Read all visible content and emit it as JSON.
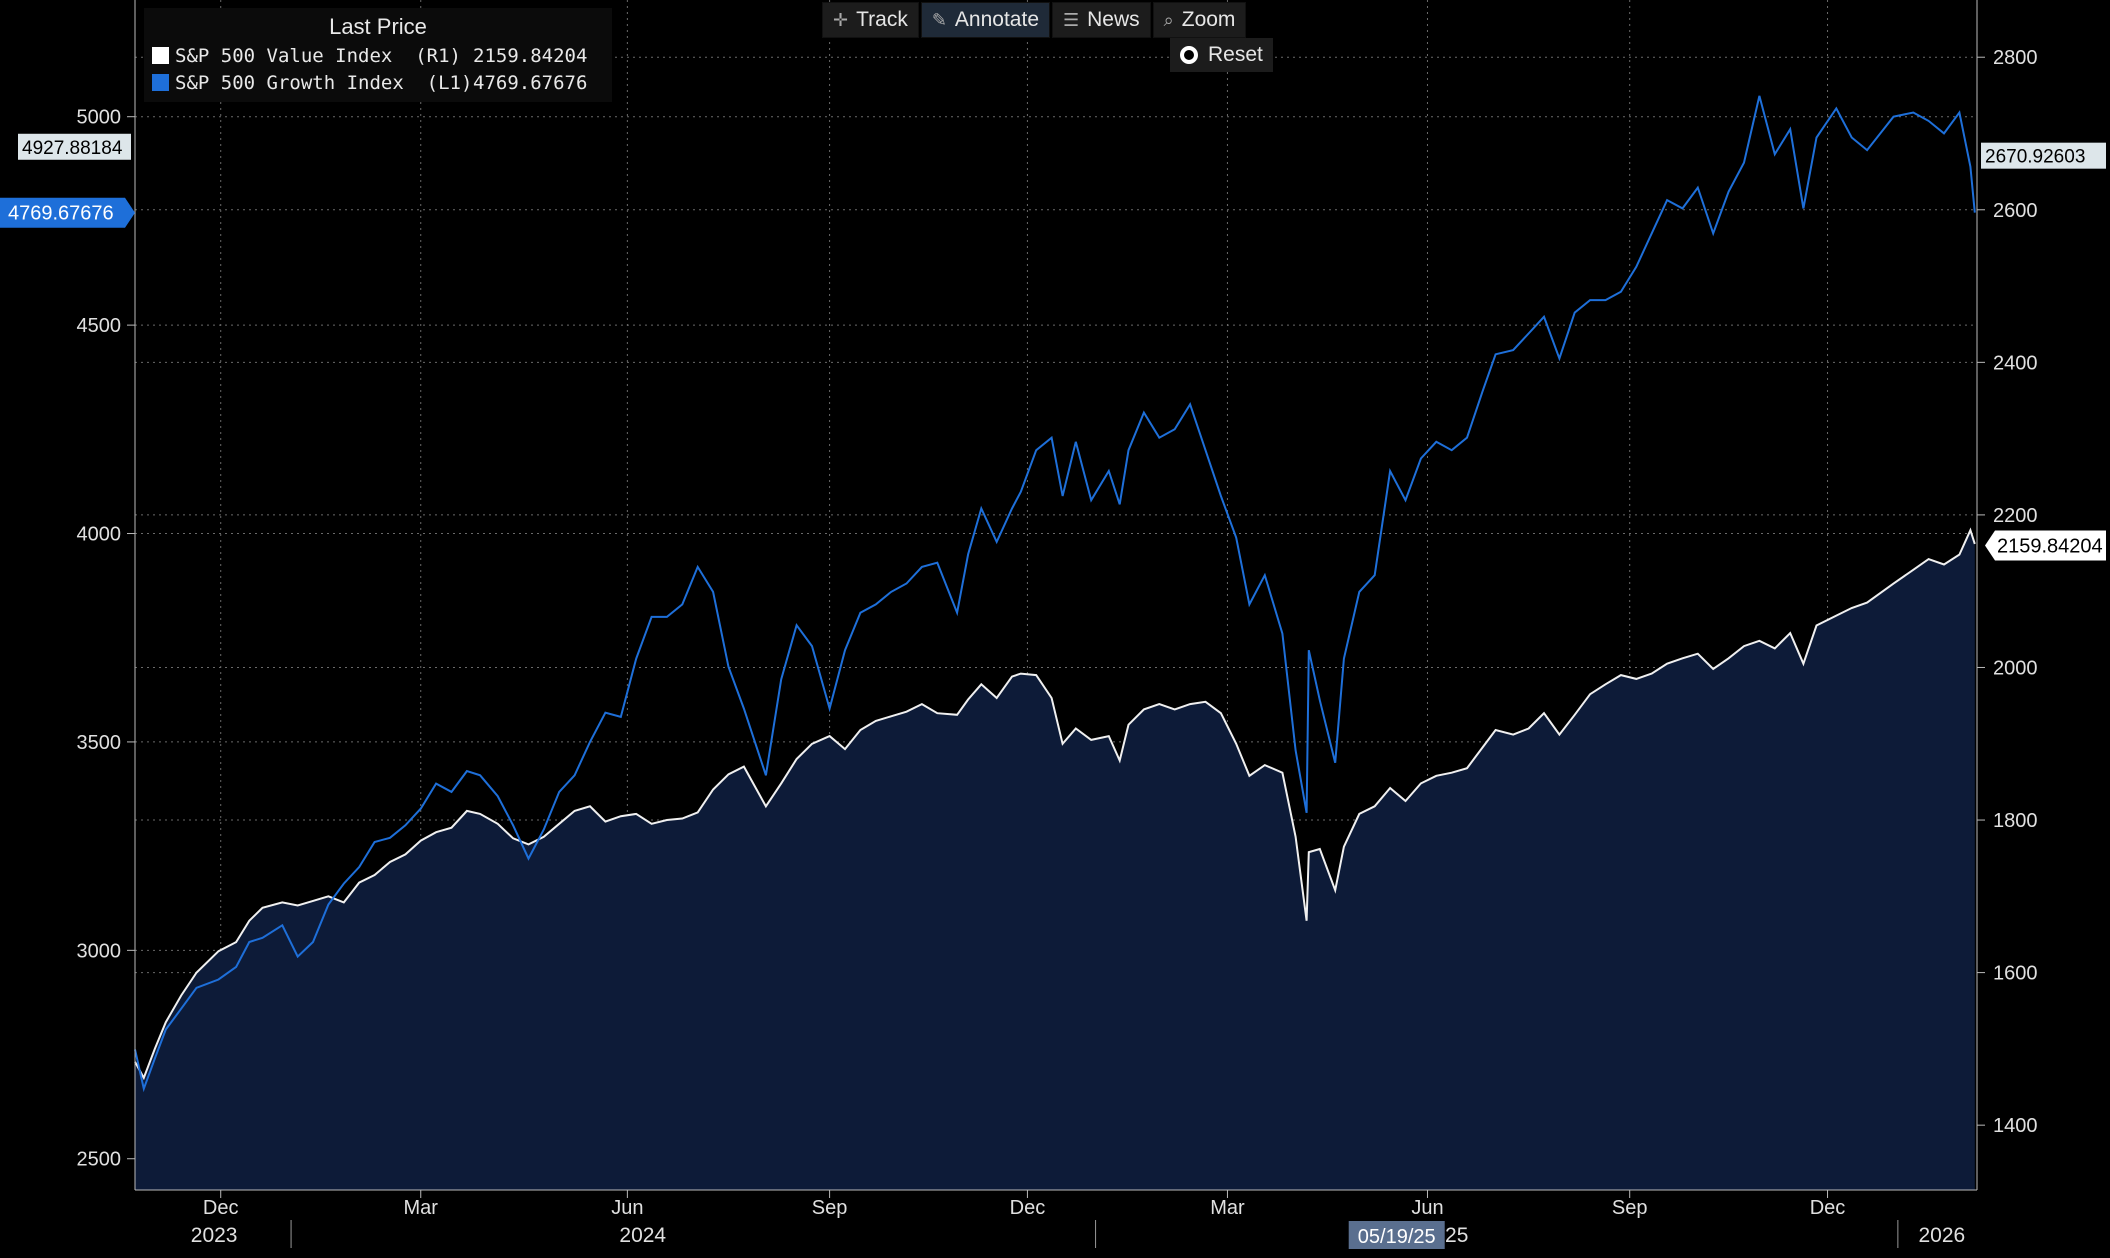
{
  "toolbar": {
    "track_label": "Track",
    "annotate_label": "Annotate",
    "news_label": "News",
    "zoom_label": "Zoom",
    "reset_label": "Reset"
  },
  "legend": {
    "title": "Last Price",
    "items": [
      {
        "name": "S&P 500 Value Index  (R1)",
        "value": "2159.84204",
        "color": "#ffffff"
      },
      {
        "name": "S&P 500 Growth Index  (L1)",
        "value": "4769.67676",
        "color": "#1e6fd9"
      }
    ]
  },
  "colors": {
    "background": "#000000",
    "value_line": "#f0f0f0",
    "value_fill": "#0d1b38",
    "growth_line": "#1e6fd9",
    "grid": "#6a6a6a"
  },
  "chart_data": {
    "type": "line",
    "title": "",
    "x_range": [
      "2023-10-23",
      "2026-02-07"
    ],
    "left_axis": {
      "ticks": [
        2500,
        3000,
        3500,
        4000,
        4500,
        5000
      ],
      "ylim": [
        2425,
        5280
      ]
    },
    "right_axis": {
      "ticks": [
        1400,
        1600,
        1800,
        2000,
        2200,
        2400,
        2600,
        2800
      ],
      "ylim": [
        1315,
        2875
      ]
    },
    "x_month_ticks": [
      {
        "label": "Dec",
        "date": "2023-12-01"
      },
      {
        "label": "Mar",
        "date": "2024-03-01"
      },
      {
        "label": "Jun",
        "date": "2024-06-03"
      },
      {
        "label": "Sep",
        "date": "2024-09-03"
      },
      {
        "label": "Dec",
        "date": "2024-12-02"
      },
      {
        "label": "Mar",
        "date": "2025-03-03"
      },
      {
        "label": "Jun",
        "date": "2025-06-02"
      },
      {
        "label": "Sep",
        "date": "2025-09-02"
      },
      {
        "label": "Dec",
        "date": "2025-12-01"
      }
    ],
    "x_year_labels": [
      {
        "label": "2023",
        "date": "2023-11-28"
      },
      {
        "label": "2024",
        "date": "2024-06-10"
      },
      {
        "label": "2025",
        "date": "2025-06-10"
      },
      {
        "label": "2026",
        "date": "2026-01-22"
      }
    ],
    "x_year_boundaries": [
      "2024-01-02",
      "2025-01-02",
      "2026-01-02"
    ],
    "cursor_date_label": "05/19/25",
    "cursor_date": "2025-05-19",
    "left_markers": [
      {
        "value": 4927.88184,
        "label": "4927.88184",
        "style": "box-light"
      },
      {
        "value": 4769.67676,
        "label": "4769.67676",
        "style": "box-blue"
      }
    ],
    "right_markers": [
      {
        "value": 2670.92603,
        "label": "2670.92603",
        "style": "box-light"
      },
      {
        "value": 2159.84204,
        "label": "2159.84204",
        "style": "box-white"
      }
    ],
    "series": [
      {
        "name": "S&P 500 Value Index",
        "axis": "right",
        "style": "area",
        "points": [
          [
            "2023-10-23",
            1483
          ],
          [
            "2023-10-27",
            1462
          ],
          [
            "2023-11-01",
            1500
          ],
          [
            "2023-11-06",
            1535
          ],
          [
            "2023-11-13",
            1570
          ],
          [
            "2023-11-20",
            1600
          ],
          [
            "2023-11-30",
            1628
          ],
          [
            "2023-12-08",
            1640
          ],
          [
            "2023-12-14",
            1668
          ],
          [
            "2023-12-20",
            1685
          ],
          [
            "2023-12-29",
            1692
          ],
          [
            "2024-01-05",
            1688
          ],
          [
            "2024-01-12",
            1694
          ],
          [
            "2024-01-19",
            1700
          ],
          [
            "2024-01-26",
            1692
          ],
          [
            "2024-02-02",
            1718
          ],
          [
            "2024-02-09",
            1728
          ],
          [
            "2024-02-16",
            1745
          ],
          [
            "2024-02-23",
            1755
          ],
          [
            "2024-03-01",
            1773
          ],
          [
            "2024-03-08",
            1784
          ],
          [
            "2024-03-15",
            1790
          ],
          [
            "2024-03-22",
            1812
          ],
          [
            "2024-03-28",
            1808
          ],
          [
            "2024-04-05",
            1795
          ],
          [
            "2024-04-12",
            1776
          ],
          [
            "2024-04-19",
            1768
          ],
          [
            "2024-04-26",
            1778
          ],
          [
            "2024-05-03",
            1795
          ],
          [
            "2024-05-10",
            1812
          ],
          [
            "2024-05-17",
            1818
          ],
          [
            "2024-05-24",
            1798
          ],
          [
            "2024-05-31",
            1805
          ],
          [
            "2024-06-07",
            1808
          ],
          [
            "2024-06-14",
            1795
          ],
          [
            "2024-06-21",
            1800
          ],
          [
            "2024-06-28",
            1802
          ],
          [
            "2024-07-05",
            1810
          ],
          [
            "2024-07-12",
            1840
          ],
          [
            "2024-07-19",
            1860
          ],
          [
            "2024-07-26",
            1870
          ],
          [
            "2024-08-05",
            1818
          ],
          [
            "2024-08-12",
            1848
          ],
          [
            "2024-08-19",
            1880
          ],
          [
            "2024-08-26",
            1900
          ],
          [
            "2024-09-03",
            1910
          ],
          [
            "2024-09-10",
            1893
          ],
          [
            "2024-09-17",
            1918
          ],
          [
            "2024-09-24",
            1930
          ],
          [
            "2024-10-01",
            1936
          ],
          [
            "2024-10-08",
            1942
          ],
          [
            "2024-10-15",
            1952
          ],
          [
            "2024-10-22",
            1940
          ],
          [
            "2024-10-31",
            1938
          ],
          [
            "2024-11-05",
            1958
          ],
          [
            "2024-11-11",
            1978
          ],
          [
            "2024-11-18",
            1960
          ],
          [
            "2024-11-25",
            1988
          ],
          [
            "2024-11-29",
            1992
          ],
          [
            "2024-12-06",
            1990
          ],
          [
            "2024-12-13",
            1960
          ],
          [
            "2024-12-18",
            1900
          ],
          [
            "2024-12-24",
            1920
          ],
          [
            "2024-12-31",
            1905
          ],
          [
            "2025-01-08",
            1910
          ],
          [
            "2025-01-13",
            1878
          ],
          [
            "2025-01-17",
            1925
          ],
          [
            "2025-01-24",
            1945
          ],
          [
            "2025-01-31",
            1952
          ],
          [
            "2025-02-07",
            1945
          ],
          [
            "2025-02-14",
            1952
          ],
          [
            "2025-02-21",
            1955
          ],
          [
            "2025-02-28",
            1940
          ],
          [
            "2025-03-07",
            1900
          ],
          [
            "2025-03-13",
            1858
          ],
          [
            "2025-03-20",
            1872
          ],
          [
            "2025-03-28",
            1862
          ],
          [
            "2025-04-03",
            1778
          ],
          [
            "2025-04-08",
            1668
          ],
          [
            "2025-04-09",
            1758
          ],
          [
            "2025-04-14",
            1762
          ],
          [
            "2025-04-21",
            1708
          ],
          [
            "2025-04-25",
            1765
          ],
          [
            "2025-05-02",
            1808
          ],
          [
            "2025-05-09",
            1818
          ],
          [
            "2025-05-16",
            1842
          ],
          [
            "2025-05-23",
            1825
          ],
          [
            "2025-05-30",
            1848
          ],
          [
            "2025-06-06",
            1858
          ],
          [
            "2025-06-13",
            1862
          ],
          [
            "2025-06-20",
            1868
          ],
          [
            "2025-06-27",
            1895
          ],
          [
            "2025-07-03",
            1918
          ],
          [
            "2025-07-11",
            1912
          ],
          [
            "2025-07-18",
            1920
          ],
          [
            "2025-07-25",
            1940
          ],
          [
            "2025-08-01",
            1912
          ],
          [
            "2025-08-08",
            1938
          ],
          [
            "2025-08-15",
            1965
          ],
          [
            "2025-08-22",
            1978
          ],
          [
            "2025-08-29",
            1990
          ],
          [
            "2025-09-05",
            1985
          ],
          [
            "2025-09-12",
            1992
          ],
          [
            "2025-09-19",
            2005
          ],
          [
            "2025-09-26",
            2012
          ],
          [
            "2025-10-03",
            2018
          ],
          [
            "2025-10-10",
            1998
          ],
          [
            "2025-10-17",
            2012
          ],
          [
            "2025-10-24",
            2028
          ],
          [
            "2025-10-31",
            2035
          ],
          [
            "2025-11-07",
            2025
          ],
          [
            "2025-11-14",
            2045
          ],
          [
            "2025-11-20",
            2005
          ],
          [
            "2025-11-26",
            2055
          ],
          [
            "2025-12-05",
            2068
          ],
          [
            "2025-12-12",
            2078
          ],
          [
            "2025-12-19",
            2085
          ],
          [
            "2025-12-31",
            2110
          ],
          [
            "2026-01-09",
            2128
          ],
          [
            "2026-01-16",
            2142
          ],
          [
            "2026-01-23",
            2135
          ],
          [
            "2026-01-30",
            2148
          ],
          [
            "2026-02-04",
            2180
          ],
          [
            "2026-02-06",
            2162
          ]
        ]
      },
      {
        "name": "S&P 500 Growth Index",
        "axis": "left",
        "style": "line",
        "points": [
          [
            "2023-10-23",
            2762
          ],
          [
            "2023-10-27",
            2668
          ],
          [
            "2023-11-01",
            2740
          ],
          [
            "2023-11-06",
            2810
          ],
          [
            "2023-11-13",
            2860
          ],
          [
            "2023-11-20",
            2910
          ],
          [
            "2023-11-30",
            2930
          ],
          [
            "2023-12-08",
            2960
          ],
          [
            "2023-12-14",
            3020
          ],
          [
            "2023-12-20",
            3030
          ],
          [
            "2023-12-29",
            3060
          ],
          [
            "2024-01-05",
            2985
          ],
          [
            "2024-01-12",
            3020
          ],
          [
            "2024-01-19",
            3110
          ],
          [
            "2024-01-26",
            3160
          ],
          [
            "2024-02-02",
            3200
          ],
          [
            "2024-02-09",
            3260
          ],
          [
            "2024-02-16",
            3270
          ],
          [
            "2024-02-23",
            3300
          ],
          [
            "2024-03-01",
            3340
          ],
          [
            "2024-03-08",
            3400
          ],
          [
            "2024-03-15",
            3380
          ],
          [
            "2024-03-22",
            3430
          ],
          [
            "2024-03-28",
            3420
          ],
          [
            "2024-04-05",
            3370
          ],
          [
            "2024-04-12",
            3300
          ],
          [
            "2024-04-19",
            3220
          ],
          [
            "2024-04-26",
            3290
          ],
          [
            "2024-05-03",
            3380
          ],
          [
            "2024-05-10",
            3420
          ],
          [
            "2024-05-17",
            3500
          ],
          [
            "2024-05-24",
            3570
          ],
          [
            "2024-05-31",
            3560
          ],
          [
            "2024-06-07",
            3700
          ],
          [
            "2024-06-14",
            3800
          ],
          [
            "2024-06-21",
            3800
          ],
          [
            "2024-06-28",
            3830
          ],
          [
            "2024-07-05",
            3920
          ],
          [
            "2024-07-12",
            3860
          ],
          [
            "2024-07-19",
            3680
          ],
          [
            "2024-07-26",
            3580
          ],
          [
            "2024-08-05",
            3420
          ],
          [
            "2024-08-12",
            3650
          ],
          [
            "2024-08-19",
            3780
          ],
          [
            "2024-08-26",
            3730
          ],
          [
            "2024-09-03",
            3580
          ],
          [
            "2024-09-10",
            3720
          ],
          [
            "2024-09-17",
            3810
          ],
          [
            "2024-09-24",
            3830
          ],
          [
            "2024-10-01",
            3860
          ],
          [
            "2024-10-08",
            3880
          ],
          [
            "2024-10-15",
            3920
          ],
          [
            "2024-10-22",
            3930
          ],
          [
            "2024-10-31",
            3810
          ],
          [
            "2024-11-05",
            3950
          ],
          [
            "2024-11-11",
            4060
          ],
          [
            "2024-11-18",
            3980
          ],
          [
            "2024-11-25",
            4060
          ],
          [
            "2024-11-29",
            4100
          ],
          [
            "2024-12-06",
            4200
          ],
          [
            "2024-12-13",
            4230
          ],
          [
            "2024-12-18",
            4090
          ],
          [
            "2024-12-24",
            4220
          ],
          [
            "2024-12-31",
            4080
          ],
          [
            "2025-01-08",
            4150
          ],
          [
            "2025-01-13",
            4070
          ],
          [
            "2025-01-17",
            4200
          ],
          [
            "2025-01-24",
            4290
          ],
          [
            "2025-01-31",
            4230
          ],
          [
            "2025-02-07",
            4250
          ],
          [
            "2025-02-14",
            4310
          ],
          [
            "2025-02-21",
            4200
          ],
          [
            "2025-02-28",
            4090
          ],
          [
            "2025-03-07",
            3990
          ],
          [
            "2025-03-13",
            3830
          ],
          [
            "2025-03-20",
            3900
          ],
          [
            "2025-03-28",
            3760
          ],
          [
            "2025-04-03",
            3480
          ],
          [
            "2025-04-08",
            3330
          ],
          [
            "2025-04-09",
            3720
          ],
          [
            "2025-04-14",
            3600
          ],
          [
            "2025-04-21",
            3450
          ],
          [
            "2025-04-25",
            3700
          ],
          [
            "2025-05-02",
            3860
          ],
          [
            "2025-05-09",
            3900
          ],
          [
            "2025-05-16",
            4150
          ],
          [
            "2025-05-23",
            4080
          ],
          [
            "2025-05-30",
            4180
          ],
          [
            "2025-06-06",
            4220
          ],
          [
            "2025-06-13",
            4200
          ],
          [
            "2025-06-20",
            4230
          ],
          [
            "2025-06-27",
            4340
          ],
          [
            "2025-07-03",
            4430
          ],
          [
            "2025-07-11",
            4440
          ],
          [
            "2025-07-18",
            4480
          ],
          [
            "2025-07-25",
            4520
          ],
          [
            "2025-08-01",
            4420
          ],
          [
            "2025-08-08",
            4530
          ],
          [
            "2025-08-15",
            4560
          ],
          [
            "2025-08-22",
            4560
          ],
          [
            "2025-08-29",
            4580
          ],
          [
            "2025-09-05",
            4640
          ],
          [
            "2025-09-12",
            4720
          ],
          [
            "2025-09-19",
            4800
          ],
          [
            "2025-09-26",
            4780
          ],
          [
            "2025-10-03",
            4830
          ],
          [
            "2025-10-10",
            4720
          ],
          [
            "2025-10-17",
            4820
          ],
          [
            "2025-10-24",
            4890
          ],
          [
            "2025-10-31",
            5050
          ],
          [
            "2025-11-07",
            4910
          ],
          [
            "2025-11-14",
            4970
          ],
          [
            "2025-11-20",
            4780
          ],
          [
            "2025-11-26",
            4950
          ],
          [
            "2025-12-05",
            5020
          ],
          [
            "2025-12-12",
            4950
          ],
          [
            "2025-12-19",
            4920
          ],
          [
            "2025-12-31",
            5000
          ],
          [
            "2026-01-09",
            5010
          ],
          [
            "2026-01-16",
            4990
          ],
          [
            "2026-01-23",
            4960
          ],
          [
            "2026-01-30",
            5010
          ],
          [
            "2026-02-04",
            4880
          ],
          [
            "2026-02-06",
            4770
          ]
        ]
      }
    ]
  }
}
